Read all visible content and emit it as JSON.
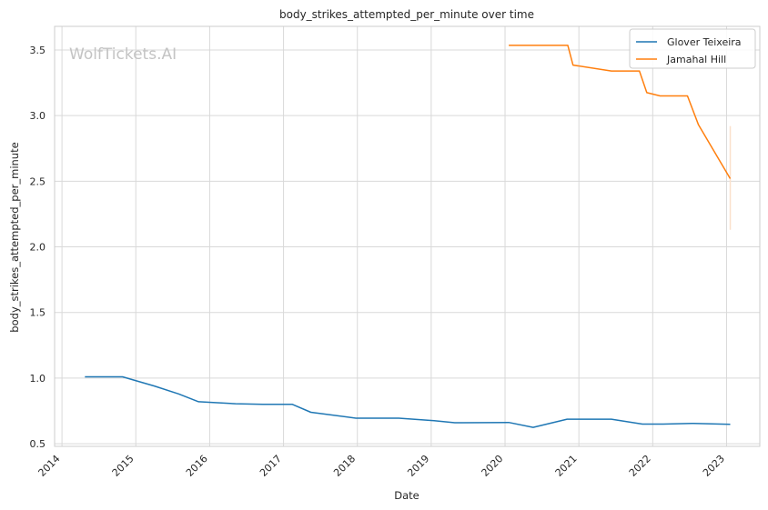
{
  "chart_data": {
    "type": "line",
    "title": "body_strikes_attempted_per_minute over time",
    "xlabel": "Date",
    "ylabel": "body_strikes_attempted_per_minute",
    "watermark": "WolfTickets.AI",
    "xlim": [
      2013.9,
      2023.45
    ],
    "ylim": [
      0.48,
      3.68
    ],
    "x_ticks": [
      2014,
      2015,
      2016,
      2017,
      2018,
      2019,
      2020,
      2021,
      2022,
      2023
    ],
    "x_tick_labels": [
      "2014",
      "2015",
      "2016",
      "2017",
      "2018",
      "2019",
      "2020",
      "2021",
      "2022",
      "2023"
    ],
    "y_ticks": [
      0.5,
      1.0,
      1.5,
      2.0,
      2.5,
      3.0,
      3.5
    ],
    "y_tick_labels": [
      "0.5",
      "1.0",
      "1.5",
      "2.0",
      "2.5",
      "3.0",
      "3.5"
    ],
    "grid": true,
    "legend_position": "top-right",
    "colors": {
      "grid": "#d9d9d9",
      "axes_edge": "#cccccc",
      "legend_edge": "#cccccc",
      "ci_band": "#fbe1cc"
    },
    "series": [
      {
        "name": "Glover Teixeira",
        "color": "#1f77b4",
        "points": [
          [
            2014.31,
            1.01
          ],
          [
            2014.82,
            1.01
          ],
          [
            2015.25,
            0.94
          ],
          [
            2015.58,
            0.88
          ],
          [
            2015.85,
            0.82
          ],
          [
            2016.35,
            0.805
          ],
          [
            2016.72,
            0.8
          ],
          [
            2017.12,
            0.8
          ],
          [
            2017.37,
            0.74
          ],
          [
            2017.98,
            0.695
          ],
          [
            2018.56,
            0.695
          ],
          [
            2019.04,
            0.675
          ],
          [
            2019.32,
            0.66
          ],
          [
            2020.05,
            0.662
          ],
          [
            2020.38,
            0.625
          ],
          [
            2020.84,
            0.687
          ],
          [
            2021.44,
            0.687
          ],
          [
            2021.86,
            0.65
          ],
          [
            2022.14,
            0.65
          ],
          [
            2022.53,
            0.655
          ],
          [
            2023.05,
            0.648
          ]
        ]
      },
      {
        "name": "Jamahal Hill",
        "color": "#ff7f0e",
        "points": [
          [
            2020.05,
            3.535
          ],
          [
            2020.85,
            3.535
          ],
          [
            2020.92,
            3.385
          ],
          [
            2021.44,
            3.34
          ],
          [
            2021.82,
            3.34
          ],
          [
            2021.92,
            3.175
          ],
          [
            2022.1,
            3.15
          ],
          [
            2022.47,
            3.15
          ],
          [
            2022.62,
            2.93
          ],
          [
            2023.05,
            2.52
          ]
        ],
        "ci": [
          2.13,
          2.92
        ]
      }
    ]
  }
}
